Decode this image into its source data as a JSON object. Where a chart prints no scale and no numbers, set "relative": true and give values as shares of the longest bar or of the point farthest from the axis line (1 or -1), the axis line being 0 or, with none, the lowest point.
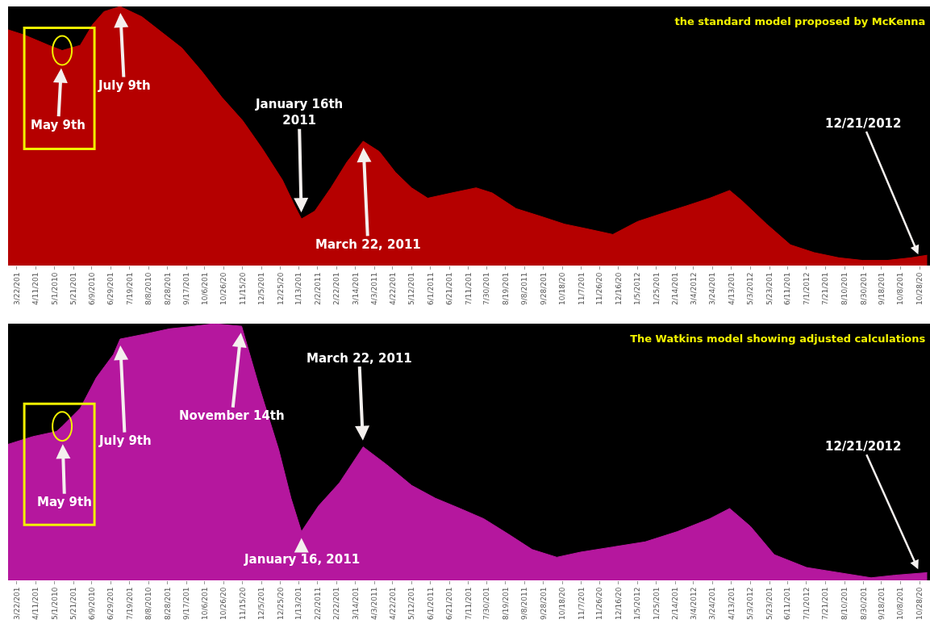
{
  "chart_data": [
    {
      "type": "area",
      "title": "the standard model proposed by McKenna",
      "relative": true,
      "color": "#b50000",
      "x": [
        "2010-03-13",
        "2010-03-30",
        "2010-04-25",
        "2010-05-09",
        "2010-05-28",
        "2010-06-10",
        "2010-06-22",
        "2010-07-09",
        "2010-08-01",
        "2010-08-22",
        "2010-09-12",
        "2010-10-03",
        "2010-10-24",
        "2010-11-15",
        "2010-12-06",
        "2010-12-27",
        "2011-01-09",
        "2011-01-16",
        "2011-01-30",
        "2011-02-16",
        "2011-03-05",
        "2011-03-22",
        "2011-04-08",
        "2011-04-25",
        "2011-05-12",
        "2011-05-29",
        "2011-06-23",
        "2011-07-19",
        "2011-08-05",
        "2011-08-30",
        "2011-09-25",
        "2011-10-20",
        "2011-11-15",
        "2011-12-10",
        "2012-01-05",
        "2012-01-30",
        "2012-02-25",
        "2012-03-21",
        "2012-04-11",
        "2012-04-24",
        "2012-05-20",
        "2012-06-14",
        "2012-07-09",
        "2012-08-04",
        "2012-08-29",
        "2012-09-24",
        "2012-10-19",
        "2012-11-05"
      ],
      "values": [
        0.91,
        0.89,
        0.85,
        0.83,
        0.85,
        0.93,
        0.98,
        1,
        0.96,
        0.9,
        0.84,
        0.75,
        0.65,
        0.56,
        0.45,
        0.33,
        0.23,
        0.18,
        0.21,
        0.3,
        0.4,
        0.48,
        0.44,
        0.36,
        0.3,
        0.26,
        0.28,
        0.3,
        0.28,
        0.22,
        0.19,
        0.16,
        0.14,
        0.12,
        0.17,
        0.2,
        0.23,
        0.26,
        0.29,
        0.25,
        0.16,
        0.08,
        0.05,
        0.03,
        0.02,
        0.02,
        0.03,
        0.04
      ],
      "xlim": [
        "2010-03-13",
        "2012-11-08"
      ],
      "xticks": [
        {
          "value": "2010-03-22",
          "label": "3/22/201"
        },
        {
          "value": "2010-04-11",
          "label": "4/11/201"
        },
        {
          "value": "2010-05-01",
          "label": "5/1/2010"
        },
        {
          "value": "2010-05-21",
          "label": "5/21/201"
        },
        {
          "value": "2010-06-09",
          "label": "6/9/2010"
        },
        {
          "value": "2010-06-29",
          "label": "6/29/201"
        },
        {
          "value": "2010-07-19",
          "label": "7/19/201"
        },
        {
          "value": "2010-08-08",
          "label": "8/8/2010"
        },
        {
          "value": "2010-08-28",
          "label": "8/28/201"
        },
        {
          "value": "2010-09-17",
          "label": "9/17/201"
        },
        {
          "value": "2010-10-06",
          "label": "10/6/201"
        },
        {
          "value": "2010-10-26",
          "label": "10/26/20"
        },
        {
          "value": "2010-11-15",
          "label": "11/15/20"
        },
        {
          "value": "2010-12-05",
          "label": "12/5/201"
        },
        {
          "value": "2010-12-25",
          "label": "12/25/20"
        },
        {
          "value": "2011-01-13",
          "label": "1/13/201"
        },
        {
          "value": "2011-02-02",
          "label": "2/2/2011"
        },
        {
          "value": "2011-02-22",
          "label": "2/22/201"
        },
        {
          "value": "2011-03-14",
          "label": "3/14/201"
        },
        {
          "value": "2011-04-03",
          "label": "4/3/2011"
        },
        {
          "value": "2011-04-22",
          "label": "4/22/201"
        },
        {
          "value": "2011-05-12",
          "label": "5/12/201"
        },
        {
          "value": "2011-06-01",
          "label": "6/1/2011"
        },
        {
          "value": "2011-06-21",
          "label": "6/21/201"
        },
        {
          "value": "2011-07-11",
          "label": "7/11/201"
        },
        {
          "value": "2011-07-30",
          "label": "7/30/201"
        },
        {
          "value": "2011-08-19",
          "label": "8/19/201"
        },
        {
          "value": "2011-09-08",
          "label": "9/8/2011"
        },
        {
          "value": "2011-09-28",
          "label": "9/28/201"
        },
        {
          "value": "2011-10-18",
          "label": "10/18/20"
        },
        {
          "value": "2011-11-07",
          "label": "11/7/201"
        },
        {
          "value": "2011-11-26",
          "label": "11/26/20"
        },
        {
          "value": "2011-12-16",
          "label": "12/16/20"
        },
        {
          "value": "2012-01-05",
          "label": "1/5/2012"
        },
        {
          "value": "2012-01-25",
          "label": "1/25/201"
        },
        {
          "value": "2012-02-14",
          "label": "2/14/201"
        },
        {
          "value": "2012-03-04",
          "label": "3/4/2012"
        },
        {
          "value": "2012-03-24",
          "label": "3/24/201"
        },
        {
          "value": "2012-04-13",
          "label": "4/13/201"
        },
        {
          "value": "2012-05-03",
          "label": "5/3/2012"
        },
        {
          "value": "2012-05-23",
          "label": "5/23/201"
        },
        {
          "value": "2012-06-11",
          "label": "6/11/201"
        },
        {
          "value": "2012-07-01",
          "label": "7/1/2012"
        },
        {
          "value": "2012-07-21",
          "label": "7/21/201"
        },
        {
          "value": "2012-08-10",
          "label": "8/10/201"
        },
        {
          "value": "2012-08-30",
          "label": "8/30/201"
        },
        {
          "value": "2012-09-18",
          "label": "9/18/201"
        },
        {
          "value": "2012-10-08",
          "label": "10/8/201"
        },
        {
          "value": "2012-10-28",
          "label": "10/28/20"
        }
      ],
      "annotations": [
        {
          "text": "May 9th",
          "x": "2010-05-09",
          "y": 0.83
        },
        {
          "text": "July 9th",
          "x": "2010-07-09",
          "y": 1
        },
        {
          "text": "January 16th\n2011",
          "x": "2011-01-16",
          "y": 0.18
        },
        {
          "text": "March 22, 2011",
          "x": "2011-03-22",
          "y": 0.48
        },
        "12/21/2012"
      ]
    },
    {
      "type": "area",
      "title": "The Watkins model showing adjusted calculations",
      "relative": true,
      "color": "#b5179e",
      "x": [
        "2010-03-13",
        "2010-04-08",
        "2010-05-03",
        "2010-05-09",
        "2010-05-28",
        "2010-06-14",
        "2010-07-02",
        "2010-07-09",
        "2010-08-05",
        "2010-08-30",
        "2010-09-25",
        "2010-10-16",
        "2010-11-14",
        "2010-12-02",
        "2010-12-23",
        "2011-01-05",
        "2011-01-16",
        "2011-02-03",
        "2011-02-25",
        "2011-03-22",
        "2011-04-16",
        "2011-05-12",
        "2011-06-06",
        "2011-07-02",
        "2011-07-27",
        "2011-08-22",
        "2011-09-16",
        "2011-10-12",
        "2011-11-06",
        "2011-12-10",
        "2012-01-13",
        "2012-02-16",
        "2012-03-21",
        "2012-04-11",
        "2012-05-03",
        "2012-05-28",
        "2012-07-01",
        "2012-08-04",
        "2012-09-07",
        "2012-10-02",
        "2012-11-05"
      ],
      "values": [
        0.53,
        0.56,
        0.58,
        0.6,
        0.67,
        0.79,
        0.88,
        0.94,
        0.96,
        0.98,
        0.99,
        1,
        0.99,
        0.76,
        0.51,
        0.32,
        0.19,
        0.29,
        0.38,
        0.52,
        0.45,
        0.37,
        0.32,
        0.28,
        0.24,
        0.18,
        0.12,
        0.09,
        0.11,
        0.13,
        0.15,
        0.19,
        0.24,
        0.28,
        0.21,
        0.1,
        0.05,
        0.03,
        0.01,
        0.02,
        0.03
      ],
      "xlim": [
        "2010-03-13",
        "2012-11-08"
      ],
      "xticks": [
        {
          "value": "2010-03-22",
          "label": "3/22/201"
        },
        {
          "value": "2010-04-11",
          "label": "4/11/201"
        },
        {
          "value": "2010-05-01",
          "label": "5/1/2010"
        },
        {
          "value": "2010-05-21",
          "label": "5/21/201"
        },
        {
          "value": "2010-06-09",
          "label": "6/9/2010"
        },
        {
          "value": "2010-06-29",
          "label": "6/29/201"
        },
        {
          "value": "2010-07-19",
          "label": "7/19/201"
        },
        {
          "value": "2010-08-08",
          "label": "8/8/2010"
        },
        {
          "value": "2010-08-28",
          "label": "8/28/201"
        },
        {
          "value": "2010-09-17",
          "label": "9/17/201"
        },
        {
          "value": "2010-10-06",
          "label": "10/6/201"
        },
        {
          "value": "2010-10-26",
          "label": "10/26/20"
        },
        {
          "value": "2010-11-15",
          "label": "11/15/20"
        },
        {
          "value": "2010-12-05",
          "label": "12/5/201"
        },
        {
          "value": "2010-12-25",
          "label": "12/25/20"
        },
        {
          "value": "2011-01-13",
          "label": "1/13/201"
        },
        {
          "value": "2011-02-02",
          "label": "2/2/2011"
        },
        {
          "value": "2011-02-22",
          "label": "2/22/201"
        },
        {
          "value": "2011-03-14",
          "label": "3/14/201"
        },
        {
          "value": "2011-04-03",
          "label": "4/3/2011"
        },
        {
          "value": "2011-04-22",
          "label": "4/22/201"
        },
        {
          "value": "2011-05-12",
          "label": "5/12/201"
        },
        {
          "value": "2011-06-01",
          "label": "6/1/2011"
        },
        {
          "value": "2011-06-21",
          "label": "6/21/201"
        },
        {
          "value": "2011-07-11",
          "label": "7/11/201"
        },
        {
          "value": "2011-07-30",
          "label": "7/30/201"
        },
        {
          "value": "2011-08-19",
          "label": "8/19/201"
        },
        {
          "value": "2011-09-08",
          "label": "9/8/2011"
        },
        {
          "value": "2011-09-28",
          "label": "9/28/201"
        },
        {
          "value": "2011-10-18",
          "label": "10/18/20"
        },
        {
          "value": "2011-11-07",
          "label": "11/7/201"
        },
        {
          "value": "2011-11-26",
          "label": "11/26/20"
        },
        {
          "value": "2011-12-16",
          "label": "12/16/20"
        },
        {
          "value": "2012-01-05",
          "label": "1/5/2012"
        },
        {
          "value": "2012-01-25",
          "label": "1/25/201"
        },
        {
          "value": "2012-02-14",
          "label": "2/14/201"
        },
        {
          "value": "2012-03-04",
          "label": "3/4/2012"
        },
        {
          "value": "2012-03-24",
          "label": "3/24/201"
        },
        {
          "value": "2012-04-13",
          "label": "4/13/201"
        },
        {
          "value": "2012-05-03",
          "label": "5/3/2012"
        },
        {
          "value": "2012-05-23",
          "label": "5/23/201"
        },
        {
          "value": "2012-06-11",
          "label": "6/11/201"
        },
        {
          "value": "2012-07-01",
          "label": "7/1/2012"
        },
        {
          "value": "2012-07-21",
          "label": "7/21/201"
        },
        {
          "value": "2012-08-10",
          "label": "8/10/201"
        },
        {
          "value": "2012-08-30",
          "label": "8/30/201"
        },
        {
          "value": "2012-09-18",
          "label": "9/18/201"
        },
        {
          "value": "2012-10-08",
          "label": "10/8/201"
        },
        {
          "value": "2012-10-28",
          "label": "10/28/20"
        }
      ],
      "annotations": [
        {
          "text": "May 9th",
          "x": "2010-05-09",
          "y": 0.6
        },
        {
          "text": "July 9th",
          "x": "2010-07-09",
          "y": 0.94
        },
        {
          "text": "November 14th",
          "x": "2010-11-14",
          "y": 0.99
        },
        {
          "text": "January 16, 2011",
          "x": "2011-01-16",
          "y": 0.19
        },
        {
          "text": "March 22, 2011",
          "x": "2011-03-22",
          "y": 0.52
        },
        "12/21/2012"
      ]
    }
  ]
}
